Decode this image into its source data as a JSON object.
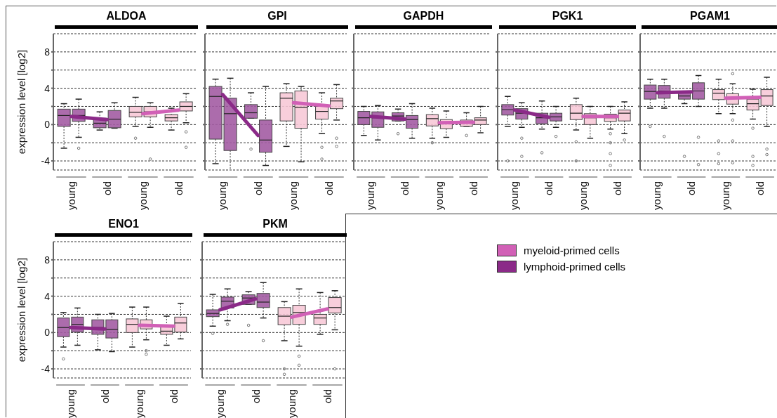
{
  "chart_data": [
    {
      "type": "box",
      "title": "ALDOA",
      "ylabel": "expression level [log2]",
      "categories": [
        "young",
        "old",
        "young",
        "old"
      ],
      "ylim": [
        -5,
        10
      ],
      "yticks": [
        -4,
        {
          "value": -2,
          "label": null
        },
        0,
        {
          "value": 2,
          "label": null
        },
        4,
        {
          "value": 6,
          "label": null
        },
        8
      ],
      "grid": "y",
      "series": [
        {
          "type": "box",
          "colors": [
            "#a35ca3",
            "#a35ca3",
            "#f7c9d7",
            "#f7c9d7"
          ],
          "boxes": [
            {
              "low": -2.6,
              "q1": -0.2,
              "median": 1.0,
              "q3": 1.7,
              "high": 2.3
            },
            {
              "low": -0.6,
              "q1": -0.35,
              "median": 0.15,
              "q3": 0.7,
              "high": 1.4
            },
            {
              "low": -0.2,
              "q1": 0.85,
              "median": 1.35,
              "q3": 2.0,
              "high": 3.0,
              "outliers": [
                -1.5
              ]
            },
            {
              "low": -0.6,
              "q1": 0.4,
              "median": 0.75,
              "q3": 1.1,
              "high": 1.8
            }
          ]
        },
        {
          "type": "box",
          "colors": [
            "#a35ca3",
            "#a35ca3",
            "#f7c9d7",
            "#f7c9d7"
          ],
          "boxes": [
            {
              "low": -1.4,
              "q1": 0.35,
              "median": 1.0,
              "q3": 1.7,
              "high": 2.8,
              "outliers": [
                -2.6
              ]
            },
            {
              "low": -0.4,
              "q1": -0.35,
              "median": 0.6,
              "q3": 1.55,
              "high": 2.4
            },
            {
              "low": -0.3,
              "q1": 0.85,
              "median": 1.4,
              "q3": 2.0,
              "high": 2.4,
              "outliers": [
                -3.8
              ]
            },
            {
              "low": 0.2,
              "q1": 1.5,
              "median": 2.0,
              "q3": 2.5,
              "high": 3.4,
              "outliers": [
                -0.8,
                -2.5
              ]
            }
          ]
        },
        {
          "type": "line",
          "color": "#8b2a88",
          "values": [
            0.9,
            0.55,
            null,
            null
          ]
        },
        {
          "type": "line",
          "color": "#d160b6",
          "values": [
            null,
            null,
            1.2,
            1.6
          ]
        }
      ]
    },
    {
      "type": "box",
      "title": "GPI",
      "categories": [
        "young",
        "old",
        "young",
        "old"
      ],
      "ylim": [
        -5,
        10
      ],
      "yticks": [
        -4,
        {
          "value": -2,
          "label": null
        },
        0,
        {
          "value": 2,
          "label": null
        },
        4,
        {
          "value": 6,
          "label": null
        },
        8
      ],
      "grid": "y",
      "tick_labels": "x",
      "series": [
        {
          "type": "box",
          "colors": [
            "#a35ca3",
            "#a35ca3",
            "#f7c9d7",
            "#f7c9d7"
          ],
          "boxes": [
            {
              "low": -4.3,
              "q1": -1.6,
              "median": 3.1,
              "q3": 4.2,
              "high": 5.0
            },
            {
              "low": 0.7,
              "q1": 0.7,
              "median": 1.3,
              "q3": 2.2,
              "high": 3.5,
              "outliers": [
                -2.7
              ]
            },
            {
              "low": -2.4,
              "q1": 0.4,
              "median": 2.9,
              "q3": 3.5,
              "high": 4.5
            },
            {
              "low": -1.0,
              "q1": 0.6,
              "median": 1.45,
              "q3": 2.0,
              "high": 3.5,
              "outliers": [
                -2.5,
                -3.8
              ]
            }
          ]
        },
        {
          "type": "box",
          "colors": [
            "#a35ca3",
            "#a35ca3",
            "#f7c9d7",
            "#f7c9d7"
          ],
          "boxes": [
            {
              "low": -5.6,
              "q1": -2.85,
              "median": 1.2,
              "q3": 2.9,
              "high": 5.1
            },
            {
              "low": -4.5,
              "q1": -3.05,
              "median": -1.7,
              "q3": 0.5,
              "high": 4.2
            },
            {
              "low": -4.1,
              "q1": -0.4,
              "median": 1.9,
              "q3": 3.7,
              "high": 4.2
            },
            {
              "low": 0.5,
              "q1": 1.75,
              "median": 2.6,
              "q3": 2.9,
              "high": 4.4,
              "outliers": [
                -1.5,
                -2.4
              ]
            }
          ]
        },
        {
          "type": "line",
          "color": "#8b2a88",
          "values": [
            3.3,
            -1.2,
            null,
            null
          ]
        },
        {
          "type": "line",
          "color": "#d160b6",
          "values": [
            null,
            null,
            2.4,
            2.05
          ]
        }
      ]
    },
    {
      "type": "box",
      "title": "GAPDH",
      "categories": [
        "young",
        "old",
        "young",
        "old"
      ],
      "ylim": [
        -5,
        10
      ],
      "yticks": [
        -4,
        {
          "value": -2,
          "label": null
        },
        0,
        {
          "value": 2,
          "label": null
        },
        4,
        {
          "value": 6,
          "label": null
        },
        8
      ],
      "grid": "y",
      "tick_labels": "x",
      "series": [
        {
          "type": "box",
          "colors": [
            "#a35ca3",
            "#a35ca3",
            "#f7c9d7",
            "#f7c9d7"
          ],
          "boxes": [
            {
              "low": -1.2,
              "q1": 0.0,
              "median": 0.75,
              "q3": 1.45,
              "high": 2.0
            },
            {
              "low": 0.4,
              "q1": 0.4,
              "median": 0.95,
              "q3": 1.3,
              "high": 1.7,
              "outliers": [
                -1.0
              ]
            },
            {
              "low": -1.5,
              "q1": -0.15,
              "median": 0.65,
              "q3": 1.1,
              "high": 1.8,
              "outliers": [
                -2.0
              ]
            },
            {
              "low": -0.2,
              "q1": -0.2,
              "median": 0.2,
              "q3": 0.5,
              "high": 1.3,
              "outliers": [
                -1.2
              ]
            }
          ]
        },
        {
          "type": "box",
          "colors": [
            "#a35ca3",
            "#a35ca3",
            "#f7c9d7",
            "#f7c9d7"
          ],
          "boxes": [
            {
              "low": -1.7,
              "q1": -0.3,
              "median": 0.75,
              "q3": 1.4,
              "high": 2.1
            },
            {
              "low": -1.5,
              "q1": -0.4,
              "median": 0.55,
              "q3": 1.0,
              "high": 2.3
            },
            {
              "low": -1.4,
              "q1": -0.45,
              "median": 0.1,
              "q3": 0.55,
              "high": 1.5
            },
            {
              "low": -0.9,
              "q1": 0.0,
              "median": 0.5,
              "q3": 0.75,
              "high": 2.0
            }
          ]
        },
        {
          "type": "line",
          "color": "#8b2a88",
          "values": [
            0.9,
            0.6,
            null,
            null
          ]
        },
        {
          "type": "line",
          "color": "#d160b6",
          "values": [
            null,
            null,
            0.2,
            0.25
          ]
        }
      ]
    },
    {
      "type": "box",
      "title": "PGK1",
      "categories": [
        "young",
        "old",
        "young",
        "old"
      ],
      "ylim": [
        -5,
        10
      ],
      "yticks": [
        -4,
        {
          "value": -2,
          "label": null
        },
        0,
        {
          "value": 2,
          "label": null
        },
        4,
        {
          "value": 6,
          "label": null
        },
        8
      ],
      "grid": "y",
      "tick_labels": "x",
      "series": [
        {
          "type": "box",
          "colors": [
            "#a35ca3",
            "#a35ca3",
            "#f7c9d7",
            "#f7c9d7"
          ],
          "boxes": [
            {
              "low": -0.2,
              "q1": 1.05,
              "median": 1.65,
              "q3": 2.2,
              "high": 3.1,
              "outliers": [
                -4.0
              ]
            },
            {
              "low": -0.5,
              "q1": 0.1,
              "median": 0.75,
              "q3": 1.25,
              "high": 2.6,
              "outliers": [
                -3.1
              ]
            },
            {
              "low": -0.6,
              "q1": 0.55,
              "median": 1.25,
              "q3": 2.2,
              "high": 2.9,
              "outliers": [
                -1.9,
                -4.0
              ]
            },
            {
              "low": -0.5,
              "q1": 0.35,
              "median": 0.75,
              "q3": 1.15,
              "high": 2.0,
              "outliers": [
                -1.0,
                -2.0,
                -3.2,
                -4.5
              ]
            }
          ]
        },
        {
          "type": "box",
          "colors": [
            "#a35ca3",
            "#a35ca3",
            "#f7c9d7",
            "#f7c9d7"
          ],
          "boxes": [
            {
              "low": -0.3,
              "q1": 0.6,
              "median": 1.25,
              "q3": 1.75,
              "high": 2.4,
              "outliers": [
                -1.5,
                -3.5
              ]
            },
            {
              "low": -0.3,
              "q1": 0.4,
              "median": 0.85,
              "q3": 1.25,
              "high": 2.0,
              "outliers": [
                -1.3
              ]
            },
            {
              "low": -1.5,
              "q1": 0.0,
              "median": 0.75,
              "q3": 1.2,
              "high": 2.0
            },
            {
              "low": -1.0,
              "q1": 0.4,
              "median": 1.25,
              "q3": 1.6,
              "high": 2.5,
              "outliers": [
                -1.7
              ]
            }
          ]
        },
        {
          "type": "line",
          "color": "#8b2a88",
          "values": [
            1.6,
            0.8,
            null,
            null
          ]
        },
        {
          "type": "line",
          "color": "#d160b6",
          "values": [
            null,
            null,
            0.9,
            0.9
          ]
        }
      ]
    },
    {
      "type": "box",
      "title": "PGAM1",
      "categories": [
        "young",
        "old",
        "young",
        "old"
      ],
      "ylim": [
        -5,
        10
      ],
      "yticks": [
        -4,
        {
          "value": -2,
          "label": null
        },
        0,
        {
          "value": 2,
          "label": null
        },
        4,
        {
          "value": 6,
          "label": null
        },
        8
      ],
      "grid": "y",
      "tick_labels": "x",
      "series": [
        {
          "type": "box",
          "colors": [
            "#a35ca3",
            "#a35ca3",
            "#f7c9d7",
            "#f7c9d7"
          ],
          "boxes": [
            {
              "low": 1.8,
              "q1": 2.8,
              "median": 3.65,
              "q3": 4.35,
              "high": 5.0,
              "outliers": [
                -0.2
              ]
            },
            {
              "low": 2.3,
              "q1": 2.8,
              "median": 3.15,
              "q3": 3.6,
              "high": 3.6,
              "outliers": [
                -3.5
              ]
            },
            {
              "low": 1.2,
              "q1": 2.75,
              "median": 3.45,
              "q3": 3.85,
              "high": 5.0,
              "outliers": [
                -1.8,
                -3.2,
                -4.3
              ]
            },
            {
              "low": 0.6,
              "q1": 1.6,
              "median": 2.3,
              "q3": 2.8,
              "high": 3.9,
              "outliers": [
                -0.4,
                -3.5,
                -4.5
              ]
            }
          ]
        },
        {
          "type": "box",
          "colors": [
            "#a35ca3",
            "#a35ca3",
            "#f7c9d7",
            "#f7c9d7"
          ],
          "boxes": [
            {
              "low": 1.8,
              "q1": 2.9,
              "median": 3.7,
              "q3": 4.3,
              "high": 5.0,
              "outliers": [
                -1.3
              ]
            },
            {
              "low": 2.0,
              "q1": 2.8,
              "median": 3.7,
              "q3": 4.6,
              "high": 5.4,
              "outliers": [
                -1.4,
                -4.4
              ]
            },
            {
              "low": 1.2,
              "q1": 2.25,
              "median": 2.9,
              "q3": 3.4,
              "high": 4.5,
              "outliers": [
                5.6,
                0.5,
                -1.8,
                -4.2
              ]
            },
            {
              "low": -0.2,
              "q1": 2.1,
              "median": 3.15,
              "q3": 3.85,
              "high": 5.2,
              "outliers": [
                -2.7,
                -3.3
              ]
            }
          ]
        },
        {
          "type": "line",
          "color": "#8b2a88",
          "values": [
            3.5,
            3.6,
            null,
            null
          ]
        },
        {
          "type": "line",
          "color": "#d160b6",
          "values": [
            null,
            null,
            2.9,
            3.0
          ]
        }
      ]
    },
    {
      "type": "box",
      "title": "ENO1",
      "ylabel": "expression level [log2]",
      "categories": [
        "young",
        "old",
        "young",
        "old"
      ],
      "ylim": [
        -5,
        10
      ],
      "yticks": [
        -4,
        {
          "value": -2,
          "label": null
        },
        0,
        {
          "value": 2,
          "label": null
        },
        4,
        {
          "value": 6,
          "label": null
        },
        8
      ],
      "grid": "y",
      "series": [
        {
          "type": "box",
          "colors": [
            "#a35ca3",
            "#a35ca3",
            "#f7c9d7",
            "#f7c9d7"
          ],
          "boxes": [
            {
              "low": -1.6,
              "q1": -0.45,
              "median": 0.55,
              "q3": 1.6,
              "high": 2.2,
              "outliers": [
                -2.9
              ]
            },
            {
              "low": -1.9,
              "q1": -0.2,
              "median": 0.55,
              "q3": 1.4,
              "high": 2.0
            },
            {
              "low": -1.6,
              "q1": 0.0,
              "median": 0.9,
              "q3": 1.5,
              "high": 2.8
            },
            {
              "low": -1.4,
              "q1": -0.2,
              "median": 0.15,
              "q3": 0.8,
              "high": 1.8
            }
          ]
        },
        {
          "type": "box",
          "colors": [
            "#a35ca3",
            "#a35ca3",
            "#f7c9d7",
            "#f7c9d7"
          ],
          "boxes": [
            {
              "low": -1.4,
              "q1": 0.05,
              "median": 0.9,
              "q3": 1.7,
              "high": 2.7
            },
            {
              "low": -2.1,
              "q1": -0.6,
              "median": 0.35,
              "q3": 1.4,
              "high": 2.1
            },
            {
              "low": -0.8,
              "q1": 0.4,
              "median": 0.9,
              "q3": 1.4,
              "high": 2.8,
              "outliers": [
                -2.0,
                -2.4
              ]
            },
            {
              "low": -0.7,
              "q1": 0.05,
              "median": 1.05,
              "q3": 1.7,
              "high": 3.2
            }
          ]
        },
        {
          "type": "line",
          "color": "#8b2a88",
          "values": [
            0.55,
            0.4,
            null,
            null
          ]
        },
        {
          "type": "line",
          "color": "#d160b6",
          "values": [
            null,
            null,
            0.8,
            0.7
          ]
        }
      ]
    },
    {
      "type": "box",
      "title": "PKM",
      "categories": [
        "young",
        "old",
        "young",
        "old"
      ],
      "ylim": [
        -5,
        10
      ],
      "yticks": [
        -4,
        {
          "value": -2,
          "label": null
        },
        0,
        {
          "value": 2,
          "label": null
        },
        4,
        {
          "value": 6,
          "label": null
        },
        8
      ],
      "grid": "y",
      "tick_labels": "x",
      "legend": "right",
      "series": [
        {
          "type": "box",
          "colors": [
            "#a35ca3",
            "#a35ca3",
            "#f7c9d7",
            "#f7c9d7"
          ],
          "boxes": [
            {
              "low": 0.7,
              "q1": 1.75,
              "median": 2.1,
              "q3": 2.5,
              "high": 4.2,
              "outliers": [
                -0.1
              ]
            },
            {
              "low": 3.1,
              "q1": 3.1,
              "median": 3.8,
              "q3": 4.15,
              "high": 4.5,
              "outliers": [
                0.8
              ]
            },
            {
              "low": -0.9,
              "q1": 0.85,
              "median": 1.8,
              "q3": 2.75,
              "high": 3.4,
              "outliers": [
                -4.0,
                -4.6
              ]
            },
            {
              "low": -0.2,
              "q1": 0.9,
              "median": 1.6,
              "q3": 2.0,
              "high": 4.4
            }
          ]
        },
        {
          "type": "box",
          "colors": [
            "#a35ca3",
            "#a35ca3",
            "#f7c9d7",
            "#f7c9d7"
          ],
          "boxes": [
            {
              "low": 1.3,
              "q1": 2.7,
              "median": 3.45,
              "q3": 3.9,
              "high": 4.8,
              "outliers": [
                0.9
              ]
            },
            {
              "low": 1.6,
              "q1": 2.75,
              "median": 3.35,
              "q3": 4.3,
              "high": 5.5,
              "outliers": [
                -0.9
              ]
            },
            {
              "low": -1.5,
              "q1": 0.9,
              "median": 2.2,
              "q3": 3.0,
              "high": 4.8,
              "outliers": [
                -2.6,
                -3.6
              ]
            },
            {
              "low": 0.3,
              "q1": 2.15,
              "median": 2.75,
              "q3": 3.85,
              "high": 4.6,
              "outliers": [
                -4.0
              ]
            }
          ]
        },
        {
          "type": "line",
          "name": "lymphoid-primed cells",
          "color": "#8b2a88",
          "values": [
            2.5,
            3.7,
            null,
            null
          ]
        },
        {
          "type": "line",
          "name": "myeloid-primed cells",
          "color": "#d160b6",
          "values": [
            null,
            null,
            1.7,
            2.6
          ]
        }
      ]
    }
  ]
}
